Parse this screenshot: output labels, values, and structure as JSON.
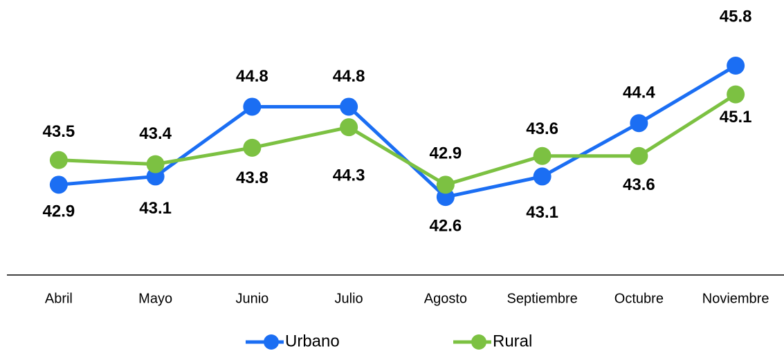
{
  "chart_data": {
    "type": "line",
    "categories": [
      "Abril",
      "Mayo",
      "Junio",
      "Julio",
      "Agosto",
      "Septiembre",
      "Octubre",
      "Noviembre"
    ],
    "series": [
      {
        "name": "Urbano",
        "color": "#1b6ef3",
        "values": [
          42.9,
          43.1,
          44.8,
          44.8,
          42.6,
          43.1,
          44.4,
          45.8
        ]
      },
      {
        "name": "Rural",
        "color": "#7cc142",
        "values": [
          43.5,
          43.4,
          43.8,
          44.3,
          42.9,
          43.6,
          43.6,
          45.1
        ]
      }
    ],
    "ylim": [
      40.7,
      47.4
    ]
  }
}
